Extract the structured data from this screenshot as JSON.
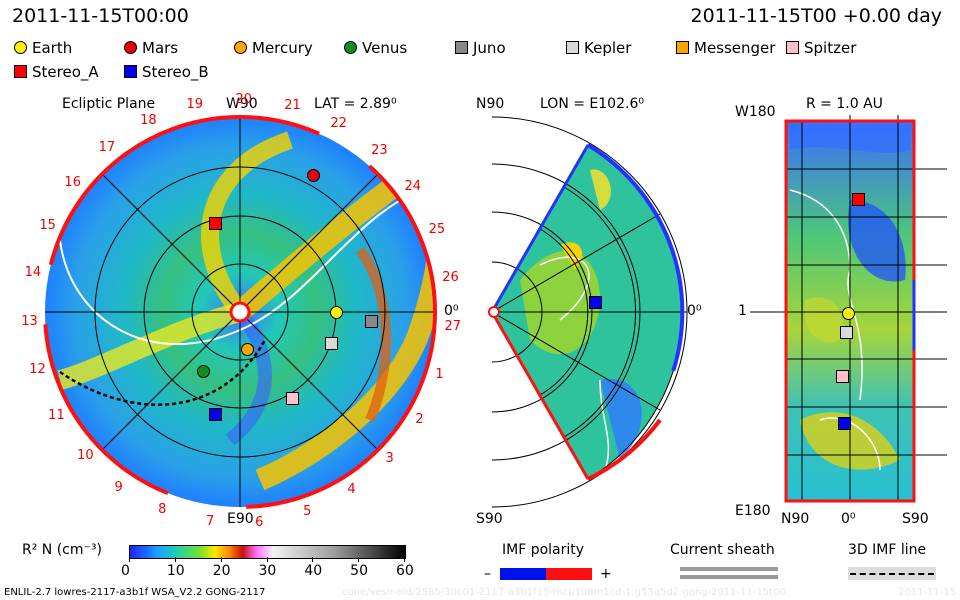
{
  "header": {
    "timestamp": "2011-11-15T00:00",
    "model_time": "2011-11-15T00 +0.00 day"
  },
  "legend": [
    {
      "name": "Earth",
      "color": "#ffef00",
      "shape": "circle"
    },
    {
      "name": "Mars",
      "color": "#e8000b",
      "shape": "circle"
    },
    {
      "name": "Mercury",
      "color": "#ffa500",
      "shape": "circle"
    },
    {
      "name": "Venus",
      "color": "#118c22",
      "shape": "circle"
    },
    {
      "name": "Juno",
      "color": "#888888",
      "shape": "square"
    },
    {
      "name": "Kepler",
      "color": "#d9d9d9",
      "shape": "square"
    },
    {
      "name": "Messenger",
      "color": "#ffa500",
      "shape": "square"
    },
    {
      "name": "Spitzer",
      "color": "#ffc0cb",
      "shape": "square"
    },
    {
      "name": "Stereo_A",
      "color": "#ff0000",
      "shape": "square"
    },
    {
      "name": "Stereo_B",
      "color": "#0000ee",
      "shape": "square"
    }
  ],
  "panels": {
    "ecliptic": {
      "title": "Ecliptic Plane",
      "top_label": "W90",
      "bottom_label": "E90",
      "right_label": "0⁰",
      "lat": "LAT = 2.89⁰",
      "rotations": [
        "1",
        "2",
        "3",
        "4",
        "5",
        "6",
        "7",
        "8",
        "9",
        "10",
        "11",
        "12",
        "13",
        "14",
        "15",
        "16",
        "17",
        "18",
        "19",
        "20",
        "21",
        "22",
        "23",
        "24",
        "25",
        "26",
        "27"
      ]
    },
    "meridional": {
      "top_label": "N90",
      "bottom_label": "S90",
      "right_label": "0⁰",
      "lon": "LON = E102.6⁰"
    },
    "sphere": {
      "title": "R = 1.0 AU",
      "top_label": "W180",
      "bottom_label": "E180",
      "left_label": "1",
      "x_labels": [
        "N90",
        "0⁰",
        "S90"
      ]
    }
  },
  "colorbar": {
    "label": "R² N (cm⁻³)",
    "ticks": [
      "0",
      "10",
      "20",
      "30",
      "40",
      "50",
      "60"
    ]
  },
  "imf": {
    "title": "IMF polarity",
    "minus": "–",
    "plus": "+",
    "sheath_title": "Current sheath",
    "line_title": "3D IMF line"
  },
  "footer": {
    "version": "ENLIL-2.7 lowres-2117-a3b1f WSA_V2.2 GONG-2117",
    "watermark": "cone/vesir-old/2585/30c01-2117-a3b1f15-mcp1umn1cd-1.g53q5d2.gong-2011-11-15t00",
    "watermark2": "2011-11-15"
  },
  "chart_data": [
    {
      "type": "heatmap",
      "title": "Ecliptic Plane",
      "lat": "LAT = 2.89⁰",
      "quantity": "R² N (cm⁻³)",
      "color_range": [
        0,
        60
      ],
      "objects": [
        "Earth",
        "Mars",
        "Mercury",
        "Venus",
        "Juno",
        "Kepler",
        "Spitzer",
        "Stereo_A",
        "Stereo_B"
      ]
    },
    {
      "type": "heatmap",
      "title": "LON = E102.6⁰",
      "quantity": "R² N (cm⁻³)",
      "color_range": [
        0,
        60
      ],
      "objects": [
        "Stereo_B"
      ]
    },
    {
      "type": "heatmap",
      "title": "R = 1.0 AU",
      "quantity": "R² N (cm⁻³)",
      "color_range": [
        0,
        60
      ],
      "objects": [
        "Stereo_A",
        "Earth",
        "Kepler",
        "Spitzer",
        "Stereo_B"
      ]
    }
  ]
}
